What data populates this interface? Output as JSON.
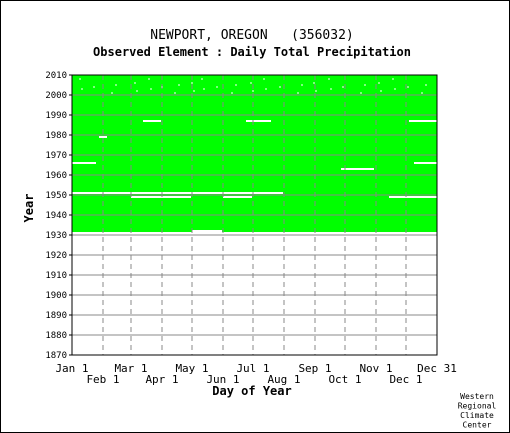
{
  "chart_data": {
    "type": "heatmap",
    "title": "NEWPORT, OREGON   (356032)",
    "subtitle": "Observed Element : Daily Total Precipitation",
    "xlabel": "Day of Year",
    "ylabel": "Year",
    "x_ticks_top": [
      "Jan 1",
      "Mar 1",
      "May 1",
      "Jul 1",
      "Sep 1",
      "Nov 1",
      "Dec 31"
    ],
    "x_ticks_bottom": [
      "Feb 1",
      "Apr 1",
      "Jun 1",
      "Aug 1",
      "Oct 1",
      "Dec 1"
    ],
    "y_ticks": [
      "2010",
      "2000",
      "1990",
      "1980",
      "1970",
      "1960",
      "1950",
      "1940",
      "1930",
      "1920",
      "1910",
      "1900",
      "1890",
      "1880",
      "1870"
    ],
    "ylim": [
      1870,
      2010
    ],
    "xlim_days": [
      1,
      366
    ],
    "data_present_years": [
      1931,
      2010
    ],
    "present_color": "#00ff00",
    "missing_color": "#ffffff",
    "grid": true,
    "missing_segments": [
      {
        "year": 1931,
        "start_day": 1,
        "end_day": 366
      },
      {
        "year": 1932,
        "start_day": 121,
        "end_day": 151
      },
      {
        "year": 1949,
        "start_day": 60,
        "end_day": 120
      },
      {
        "year": 1949,
        "start_day": 152,
        "end_day": 181
      },
      {
        "year": 1949,
        "start_day": 318,
        "end_day": 366
      },
      {
        "year": 1951,
        "start_day": 1,
        "end_day": 212
      },
      {
        "year": 1963,
        "start_day": 270,
        "end_day": 303
      },
      {
        "year": 1966,
        "start_day": 1,
        "end_day": 25
      },
      {
        "year": 1966,
        "start_day": 343,
        "end_day": 366
      },
      {
        "year": 1979,
        "start_day": 28,
        "end_day": 36
      },
      {
        "year": 1987,
        "start_day": 338,
        "end_day": 366
      },
      {
        "year": 1987,
        "start_day": 175,
        "end_day": 200
      },
      {
        "year": 1987,
        "start_day": 72,
        "end_day": 90
      }
    ]
  },
  "credit": [
    "Western",
    "Regional",
    "Climate",
    "Center"
  ]
}
